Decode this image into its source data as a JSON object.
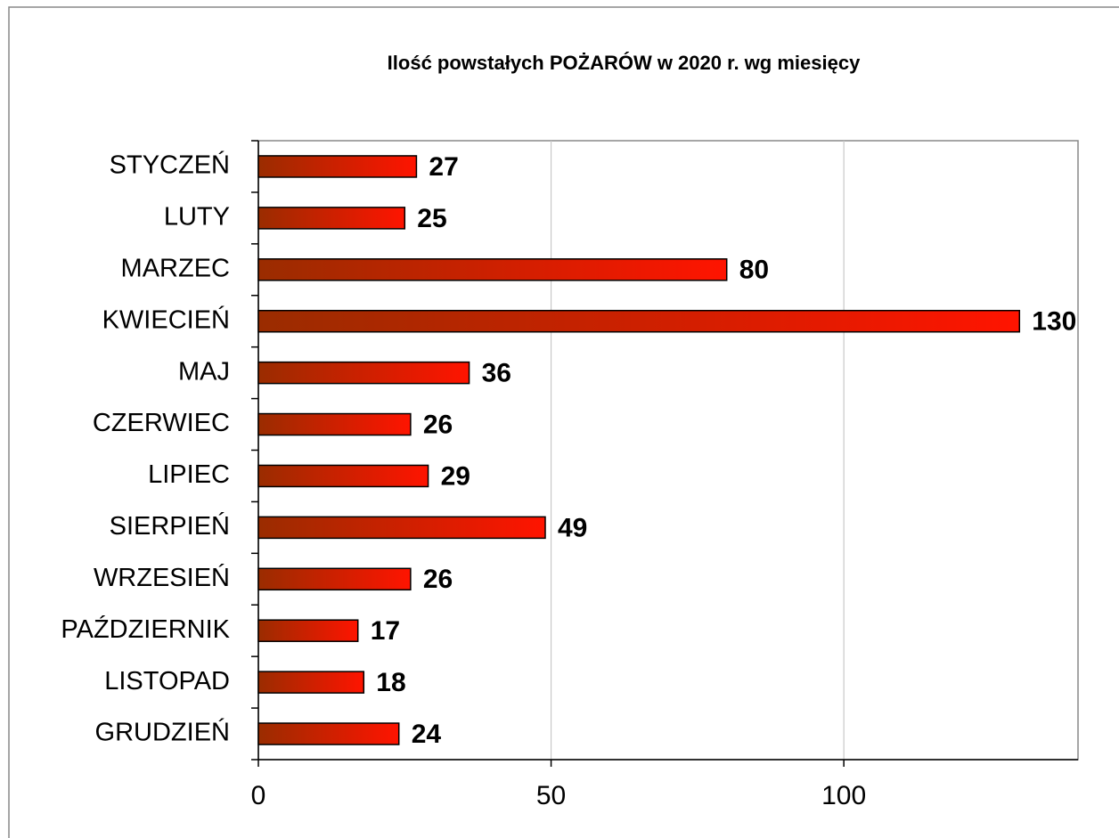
{
  "chart_data": {
    "type": "bar",
    "orientation": "horizontal",
    "title": "Ilość powstałych POŻARÓW  w 2020 r. wg miesięcy",
    "categories": [
      "STYCZEŃ",
      "LUTY",
      "MARZEC",
      "KWIECIEŃ",
      "MAJ",
      "CZERWIEC",
      "LIPIEC",
      "SIERPIEŃ",
      "WRZESIEŃ",
      "PAŹDZIERNIK",
      "LISTOPAD",
      "GRUDZIEŃ"
    ],
    "values": [
      27,
      25,
      80,
      130,
      36,
      26,
      29,
      49,
      26,
      17,
      18,
      24
    ],
    "color": "#ff1400",
    "gradient_start_color": "#9a2c00",
    "xlim": [
      0,
      140
    ],
    "xticks": [
      0,
      50,
      100
    ],
    "grid": true
  }
}
